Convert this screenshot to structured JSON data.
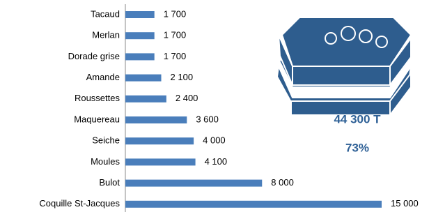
{
  "chart_data": {
    "type": "bar",
    "orientation": "horizontal",
    "categories": [
      "Tacaud",
      "Merlan",
      "Dorade grise",
      "Amande",
      "Roussettes",
      "Maquereau",
      "Seiche",
      "Moules",
      "Bulot",
      "Coquille St-Jacques"
    ],
    "values": [
      1700,
      1700,
      1700,
      2100,
      2400,
      3600,
      4000,
      4100,
      8000,
      15000
    ],
    "value_labels": [
      "1 700",
      "1 700",
      "1 700",
      "2 100",
      "2 400",
      "3 600",
      "4 000",
      "4 100",
      "8 000",
      "15 000"
    ],
    "color": "#4a7ebb",
    "annotations": [
      "44 300 T",
      "73%"
    ]
  }
}
